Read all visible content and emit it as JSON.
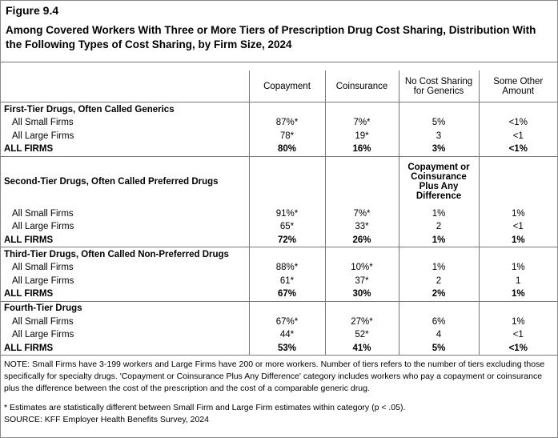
{
  "header": {
    "figure": "Figure 9.4",
    "title": "Among Covered Workers With Three or More Tiers of Prescription Drug Cost Sharing, Distribution With the Following Types of Cost Sharing, by Firm Size, 2024"
  },
  "table": {
    "columns": [
      "Copayment",
      "Coinsurance",
      "No Cost Sharing for Generics",
      "Some Other Amount"
    ],
    "sections": [
      {
        "title": "First-Tier Drugs, Often Called Generics",
        "rows": [
          {
            "label": "All Small Firms",
            "cells": [
              "87%*",
              "7%*",
              "5%",
              "<1%"
            ]
          },
          {
            "label": "All Large Firms",
            "cells": [
              "78*",
              "19*",
              "3",
              "<1"
            ]
          },
          {
            "label": "ALL FIRMS",
            "cells": [
              "80%",
              "16%",
              "3%",
              "<1%"
            ]
          }
        ]
      },
      {
        "title": "Second-Tier Drugs, Often Called Preferred Drugs",
        "column_header": "Copayment or Coinsurance Plus Any Difference",
        "rows": [
          {
            "label": "All Small Firms",
            "cells": [
              "91%*",
              "7%*",
              "1%",
              "1%"
            ]
          },
          {
            "label": "All Large Firms",
            "cells": [
              "65*",
              "33*",
              "2",
              "<1"
            ]
          },
          {
            "label": "ALL FIRMS",
            "cells": [
              "72%",
              "26%",
              "1%",
              "1%"
            ]
          }
        ]
      },
      {
        "title": "Third-Tier Drugs, Often Called Non-Preferred Drugs",
        "rows": [
          {
            "label": "All Small Firms",
            "cells": [
              "88%*",
              "10%*",
              "1%",
              "1%"
            ]
          },
          {
            "label": "All Large Firms",
            "cells": [
              "61*",
              "37*",
              "2",
              "1"
            ]
          },
          {
            "label": "ALL FIRMS",
            "cells": [
              "67%",
              "30%",
              "2%",
              "1%"
            ]
          }
        ]
      },
      {
        "title": "Fourth-Tier Drugs",
        "rows": [
          {
            "label": "All Small Firms",
            "cells": [
              "67%*",
              "27%*",
              "6%",
              "1%"
            ]
          },
          {
            "label": "All Large Firms",
            "cells": [
              "44*",
              "52*",
              "4",
              "<1"
            ]
          },
          {
            "label": "ALL FIRMS",
            "cells": [
              "53%",
              "41%",
              "5%",
              "<1%"
            ]
          }
        ]
      }
    ]
  },
  "notes": [
    "NOTE: Small Firms have 3-199 workers and Large Firms have 200 or more workers. Number of tiers refers to the number of tiers excluding those specifically for specialty drugs. 'Copayment or Coinsurance Plus Any Difference' category includes workers who pay a copayment or coinsurance plus the difference between the cost of the prescription and the cost of a comparable generic drug.",
    "* Estimates are statistically different between Small Firm and Large Firm estimates within category (p < .05).",
    "SOURCE: KFF Employer Health Benefits Survey, 2024"
  ]
}
